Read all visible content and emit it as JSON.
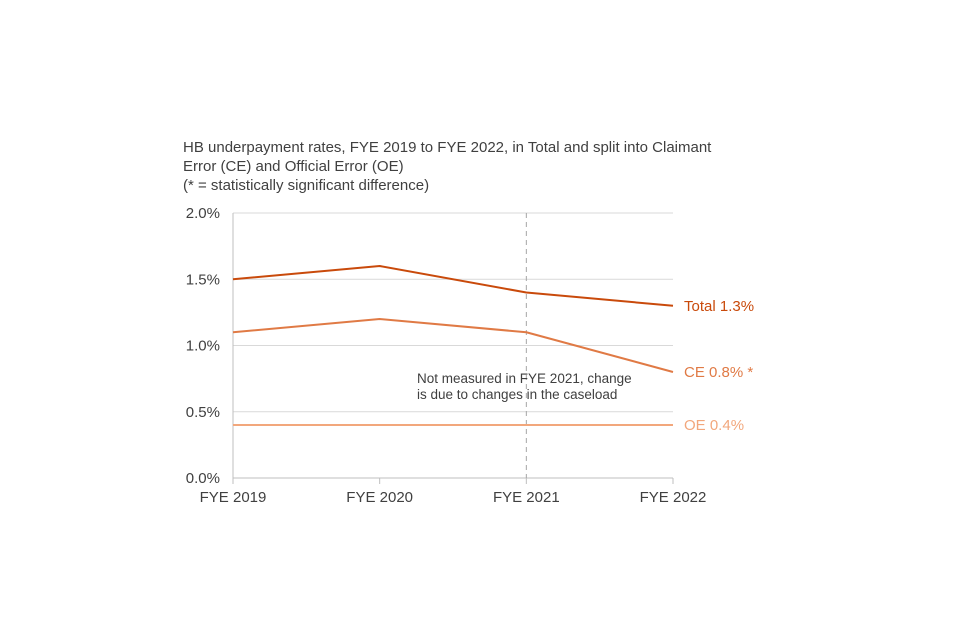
{
  "chart_data": {
    "type": "line",
    "title": [
      "HB underpayment rates, FYE 2019 to FYE 2022, in Total and split into Claimant",
      "Error (CE) and Official Error (OE)",
      "(* = statistically significant difference)"
    ],
    "xlabel": "",
    "ylabel": "",
    "categories": [
      "FYE 2019",
      "FYE 2020",
      "FYE 2021",
      "FYE 2022"
    ],
    "ylim": [
      0,
      2.0
    ],
    "yticks": [
      "0.0%",
      "0.5%",
      "1.0%",
      "1.5%",
      "2.0%"
    ],
    "grid": true,
    "series": [
      {
        "name": "Total",
        "label": "Total 1.3%",
        "values": [
          1.5,
          1.6,
          1.4,
          1.3
        ],
        "color": "#C94A0B"
      },
      {
        "name": "CE",
        "label": "CE 0.8% *",
        "values": [
          1.1,
          1.2,
          1.1,
          0.8
        ],
        "color": "#E07A45"
      },
      {
        "name": "OE",
        "label": "OE 0.4%",
        "values": [
          0.4,
          0.4,
          0.4,
          0.4
        ],
        "color": "#F2A77C"
      }
    ],
    "annotation": {
      "lines": [
        "Not measured in FYE 2021, change",
        "is due to changes in the caseload"
      ],
      "category": "FYE 2021"
    }
  }
}
